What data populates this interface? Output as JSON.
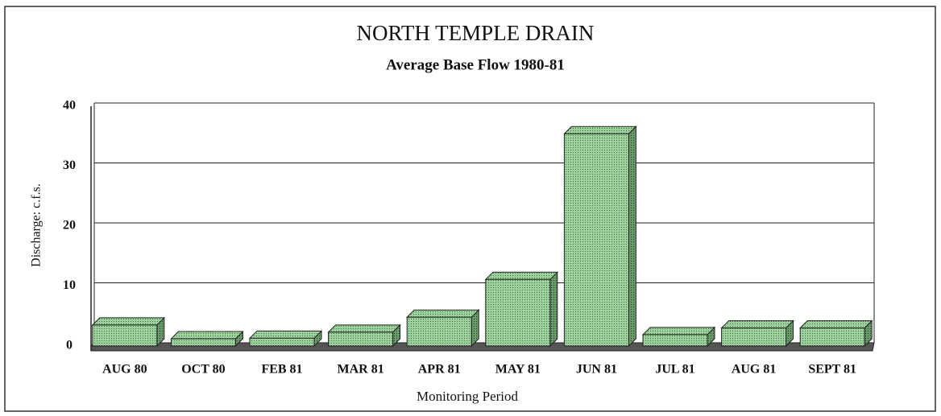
{
  "chart_data": {
    "type": "bar3d",
    "title": "NORTH TEMPLE DRAIN",
    "subtitle": "Average Base Flow 1980-81",
    "y_label": "Discharge: c.f.s.",
    "x_label": "Monitoring Period",
    "categories": [
      "AUG 80",
      "OCT 80",
      "FEB 81",
      "MAR 81",
      "APR 81",
      "MAY 81",
      "JUN 81",
      "JUL 81",
      "AUG 81",
      "SEPT 81"
    ],
    "values": [
      3.5,
      1.2,
      1.3,
      2.3,
      4.8,
      11.1,
      35.4,
      1.9,
      3.0,
      3.0
    ],
    "color": "#86b886",
    "ylim": [
      0,
      40
    ],
    "yticks": [
      0,
      10,
      20,
      30,
      40
    ],
    "grid": true
  }
}
